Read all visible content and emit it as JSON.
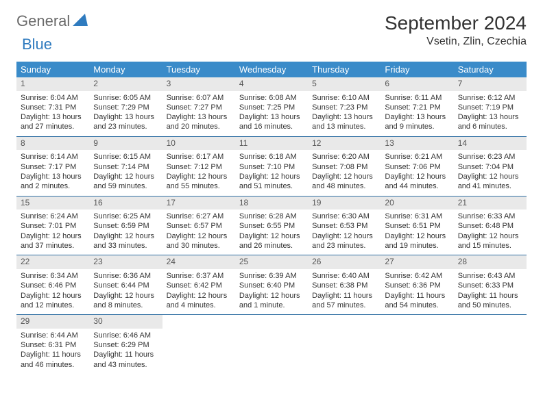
{
  "logo": {
    "text1": "General",
    "text2": "Blue"
  },
  "title": "September 2024",
  "location": "Vsetin, Zlin, Czechia",
  "colors": {
    "header_bg": "#3a8bc9",
    "header_text": "#ffffff",
    "daynum_bg": "#e9e9e9",
    "row_border": "#2f6fa3",
    "logo_gray": "#6a6a6a",
    "logo_blue": "#2f7bbf"
  },
  "weekdays": [
    "Sunday",
    "Monday",
    "Tuesday",
    "Wednesday",
    "Thursday",
    "Friday",
    "Saturday"
  ],
  "weeks": [
    [
      {
        "n": "1",
        "sr": "Sunrise: 6:04 AM",
        "ss": "Sunset: 7:31 PM",
        "dl": "Daylight: 13 hours and 27 minutes."
      },
      {
        "n": "2",
        "sr": "Sunrise: 6:05 AM",
        "ss": "Sunset: 7:29 PM",
        "dl": "Daylight: 13 hours and 23 minutes."
      },
      {
        "n": "3",
        "sr": "Sunrise: 6:07 AM",
        "ss": "Sunset: 7:27 PM",
        "dl": "Daylight: 13 hours and 20 minutes."
      },
      {
        "n": "4",
        "sr": "Sunrise: 6:08 AM",
        "ss": "Sunset: 7:25 PM",
        "dl": "Daylight: 13 hours and 16 minutes."
      },
      {
        "n": "5",
        "sr": "Sunrise: 6:10 AM",
        "ss": "Sunset: 7:23 PM",
        "dl": "Daylight: 13 hours and 13 minutes."
      },
      {
        "n": "6",
        "sr": "Sunrise: 6:11 AM",
        "ss": "Sunset: 7:21 PM",
        "dl": "Daylight: 13 hours and 9 minutes."
      },
      {
        "n": "7",
        "sr": "Sunrise: 6:12 AM",
        "ss": "Sunset: 7:19 PM",
        "dl": "Daylight: 13 hours and 6 minutes."
      }
    ],
    [
      {
        "n": "8",
        "sr": "Sunrise: 6:14 AM",
        "ss": "Sunset: 7:17 PM",
        "dl": "Daylight: 13 hours and 2 minutes."
      },
      {
        "n": "9",
        "sr": "Sunrise: 6:15 AM",
        "ss": "Sunset: 7:14 PM",
        "dl": "Daylight: 12 hours and 59 minutes."
      },
      {
        "n": "10",
        "sr": "Sunrise: 6:17 AM",
        "ss": "Sunset: 7:12 PM",
        "dl": "Daylight: 12 hours and 55 minutes."
      },
      {
        "n": "11",
        "sr": "Sunrise: 6:18 AM",
        "ss": "Sunset: 7:10 PM",
        "dl": "Daylight: 12 hours and 51 minutes."
      },
      {
        "n": "12",
        "sr": "Sunrise: 6:20 AM",
        "ss": "Sunset: 7:08 PM",
        "dl": "Daylight: 12 hours and 48 minutes."
      },
      {
        "n": "13",
        "sr": "Sunrise: 6:21 AM",
        "ss": "Sunset: 7:06 PM",
        "dl": "Daylight: 12 hours and 44 minutes."
      },
      {
        "n": "14",
        "sr": "Sunrise: 6:23 AM",
        "ss": "Sunset: 7:04 PM",
        "dl": "Daylight: 12 hours and 41 minutes."
      }
    ],
    [
      {
        "n": "15",
        "sr": "Sunrise: 6:24 AM",
        "ss": "Sunset: 7:01 PM",
        "dl": "Daylight: 12 hours and 37 minutes."
      },
      {
        "n": "16",
        "sr": "Sunrise: 6:25 AM",
        "ss": "Sunset: 6:59 PM",
        "dl": "Daylight: 12 hours and 33 minutes."
      },
      {
        "n": "17",
        "sr": "Sunrise: 6:27 AM",
        "ss": "Sunset: 6:57 PM",
        "dl": "Daylight: 12 hours and 30 minutes."
      },
      {
        "n": "18",
        "sr": "Sunrise: 6:28 AM",
        "ss": "Sunset: 6:55 PM",
        "dl": "Daylight: 12 hours and 26 minutes."
      },
      {
        "n": "19",
        "sr": "Sunrise: 6:30 AM",
        "ss": "Sunset: 6:53 PM",
        "dl": "Daylight: 12 hours and 23 minutes."
      },
      {
        "n": "20",
        "sr": "Sunrise: 6:31 AM",
        "ss": "Sunset: 6:51 PM",
        "dl": "Daylight: 12 hours and 19 minutes."
      },
      {
        "n": "21",
        "sr": "Sunrise: 6:33 AM",
        "ss": "Sunset: 6:48 PM",
        "dl": "Daylight: 12 hours and 15 minutes."
      }
    ],
    [
      {
        "n": "22",
        "sr": "Sunrise: 6:34 AM",
        "ss": "Sunset: 6:46 PM",
        "dl": "Daylight: 12 hours and 12 minutes."
      },
      {
        "n": "23",
        "sr": "Sunrise: 6:36 AM",
        "ss": "Sunset: 6:44 PM",
        "dl": "Daylight: 12 hours and 8 minutes."
      },
      {
        "n": "24",
        "sr": "Sunrise: 6:37 AM",
        "ss": "Sunset: 6:42 PM",
        "dl": "Daylight: 12 hours and 4 minutes."
      },
      {
        "n": "25",
        "sr": "Sunrise: 6:39 AM",
        "ss": "Sunset: 6:40 PM",
        "dl": "Daylight: 12 hours and 1 minute."
      },
      {
        "n": "26",
        "sr": "Sunrise: 6:40 AM",
        "ss": "Sunset: 6:38 PM",
        "dl": "Daylight: 11 hours and 57 minutes."
      },
      {
        "n": "27",
        "sr": "Sunrise: 6:42 AM",
        "ss": "Sunset: 6:36 PM",
        "dl": "Daylight: 11 hours and 54 minutes."
      },
      {
        "n": "28",
        "sr": "Sunrise: 6:43 AM",
        "ss": "Sunset: 6:33 PM",
        "dl": "Daylight: 11 hours and 50 minutes."
      }
    ],
    [
      {
        "n": "29",
        "sr": "Sunrise: 6:44 AM",
        "ss": "Sunset: 6:31 PM",
        "dl": "Daylight: 11 hours and 46 minutes."
      },
      {
        "n": "30",
        "sr": "Sunrise: 6:46 AM",
        "ss": "Sunset: 6:29 PM",
        "dl": "Daylight: 11 hours and 43 minutes."
      },
      null,
      null,
      null,
      null,
      null
    ]
  ]
}
